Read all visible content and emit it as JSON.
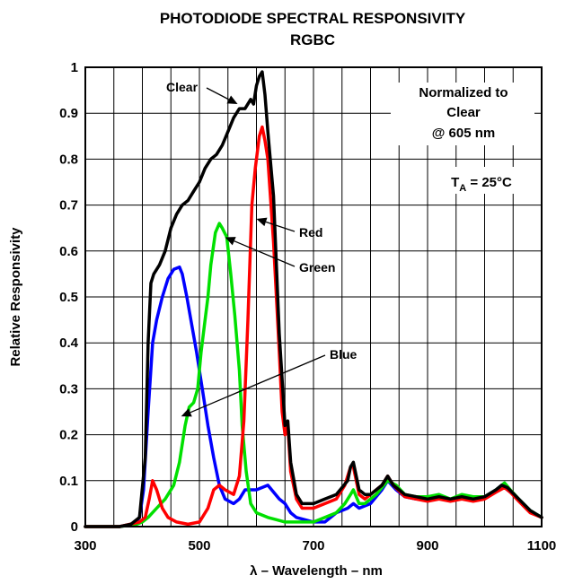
{
  "chart_data": {
    "type": "line",
    "title": "PHOTODIODE SPECTRAL RESPONSIVITY",
    "subtitle": "RGBC",
    "xlabel": "λ – Wavelength – nm",
    "ylabel": "Relative Responsivity",
    "xlim": [
      300,
      1100
    ],
    "ylim": [
      0,
      1
    ],
    "x_ticks": [
      300,
      500,
      700,
      900,
      1100
    ],
    "y_ticks": [
      0,
      0.1,
      0.2,
      0.3,
      0.4,
      0.5,
      0.6,
      0.7,
      0.8,
      0.9,
      1
    ],
    "y_tick_labels": [
      "0",
      "0.1",
      "0.2",
      "0.3",
      "0.4",
      "0.5",
      "0.6",
      "0.7",
      "0.8",
      "0.9",
      "1"
    ],
    "grid": true,
    "notes": {
      "normalized_line1": "Normalized to",
      "normalized_line2": "Clear",
      "normalized_line3": "@ 605 nm",
      "temp_prefix": "T",
      "temp_sub": "A",
      "temp_suffix": " = 25°C"
    },
    "annotations": [
      {
        "label": "Clear",
        "series": "Clear",
        "point": [
          567,
          0.92
        ]
      },
      {
        "label": "Red",
        "series": "Red",
        "point": [
          600,
          0.67
        ]
      },
      {
        "label": "Green",
        "series": "Green",
        "point": [
          545,
          0.63
        ]
      },
      {
        "label": "Blue",
        "series": "Blue",
        "point": [
          468,
          0.24
        ]
      }
    ],
    "series": [
      {
        "name": "Clear",
        "color": "#000000",
        "points": [
          [
            300,
            0
          ],
          [
            360,
            0
          ],
          [
            380,
            0.005
          ],
          [
            395,
            0.02
          ],
          [
            405,
            0.15
          ],
          [
            410,
            0.4
          ],
          [
            415,
            0.53
          ],
          [
            420,
            0.55
          ],
          [
            430,
            0.57
          ],
          [
            440,
            0.6
          ],
          [
            450,
            0.65
          ],
          [
            460,
            0.68
          ],
          [
            470,
            0.7
          ],
          [
            480,
            0.71
          ],
          [
            490,
            0.73
          ],
          [
            500,
            0.75
          ],
          [
            510,
            0.78
          ],
          [
            520,
            0.8
          ],
          [
            530,
            0.81
          ],
          [
            540,
            0.83
          ],
          [
            550,
            0.86
          ],
          [
            560,
            0.89
          ],
          [
            570,
            0.91
          ],
          [
            580,
            0.91
          ],
          [
            590,
            0.93
          ],
          [
            595,
            0.92
          ],
          [
            600,
            0.96
          ],
          [
            605,
            0.98
          ],
          [
            610,
            0.99
          ],
          [
            615,
            0.94
          ],
          [
            620,
            0.86
          ],
          [
            630,
            0.72
          ],
          [
            640,
            0.42
          ],
          [
            650,
            0.22
          ],
          [
            655,
            0.23
          ],
          [
            660,
            0.14
          ],
          [
            670,
            0.07
          ],
          [
            680,
            0.05
          ],
          [
            700,
            0.05
          ],
          [
            720,
            0.06
          ],
          [
            740,
            0.07
          ],
          [
            760,
            0.1
          ],
          [
            765,
            0.13
          ],
          [
            770,
            0.14
          ],
          [
            780,
            0.08
          ],
          [
            790,
            0.07
          ],
          [
            800,
            0.07
          ],
          [
            820,
            0.09
          ],
          [
            830,
            0.11
          ],
          [
            840,
            0.09
          ],
          [
            860,
            0.07
          ],
          [
            880,
            0.065
          ],
          [
            900,
            0.06
          ],
          [
            920,
            0.065
          ],
          [
            940,
            0.06
          ],
          [
            960,
            0.065
          ],
          [
            980,
            0.06
          ],
          [
            1000,
            0.065
          ],
          [
            1020,
            0.08
          ],
          [
            1030,
            0.09
          ],
          [
            1040,
            0.085
          ],
          [
            1060,
            0.06
          ],
          [
            1080,
            0.035
          ],
          [
            1100,
            0.02
          ]
        ]
      },
      {
        "name": "Red",
        "color": "#ff0000",
        "points": [
          [
            300,
            0
          ],
          [
            360,
            0
          ],
          [
            395,
            0.01
          ],
          [
            405,
            0.02
          ],
          [
            412,
            0.06
          ],
          [
            418,
            0.1
          ],
          [
            425,
            0.08
          ],
          [
            435,
            0.04
          ],
          [
            445,
            0.02
          ],
          [
            460,
            0.01
          ],
          [
            480,
            0.005
          ],
          [
            500,
            0.01
          ],
          [
            515,
            0.04
          ],
          [
            525,
            0.08
          ],
          [
            535,
            0.09
          ],
          [
            545,
            0.08
          ],
          [
            560,
            0.07
          ],
          [
            570,
            0.11
          ],
          [
            578,
            0.23
          ],
          [
            585,
            0.45
          ],
          [
            592,
            0.7
          ],
          [
            598,
            0.78
          ],
          [
            605,
            0.85
          ],
          [
            610,
            0.87
          ],
          [
            615,
            0.84
          ],
          [
            620,
            0.8
          ],
          [
            630,
            0.62
          ],
          [
            640,
            0.38
          ],
          [
            645,
            0.25
          ],
          [
            650,
            0.2
          ],
          [
            655,
            0.22
          ],
          [
            660,
            0.12
          ],
          [
            670,
            0.06
          ],
          [
            680,
            0.04
          ],
          [
            700,
            0.04
          ],
          [
            720,
            0.05
          ],
          [
            740,
            0.06
          ],
          [
            755,
            0.09
          ],
          [
            765,
            0.13
          ],
          [
            770,
            0.13
          ],
          [
            780,
            0.07
          ],
          [
            790,
            0.06
          ],
          [
            800,
            0.07
          ],
          [
            820,
            0.09
          ],
          [
            830,
            0.11
          ],
          [
            840,
            0.09
          ],
          [
            860,
            0.065
          ],
          [
            880,
            0.06
          ],
          [
            900,
            0.055
          ],
          [
            920,
            0.06
          ],
          [
            940,
            0.055
          ],
          [
            960,
            0.06
          ],
          [
            980,
            0.055
          ],
          [
            1000,
            0.06
          ],
          [
            1020,
            0.075
          ],
          [
            1035,
            0.085
          ],
          [
            1045,
            0.075
          ],
          [
            1060,
            0.055
          ],
          [
            1080,
            0.03
          ],
          [
            1100,
            0.02
          ]
        ]
      },
      {
        "name": "Green",
        "color": "#00e000",
        "points": [
          [
            300,
            0
          ],
          [
            360,
            0
          ],
          [
            390,
            0.005
          ],
          [
            400,
            0.01
          ],
          [
            410,
            0.02
          ],
          [
            425,
            0.04
          ],
          [
            440,
            0.06
          ],
          [
            455,
            0.09
          ],
          [
            465,
            0.14
          ],
          [
            475,
            0.22
          ],
          [
            482,
            0.26
          ],
          [
            490,
            0.27
          ],
          [
            497,
            0.3
          ],
          [
            503,
            0.38
          ],
          [
            510,
            0.45
          ],
          [
            515,
            0.5
          ],
          [
            520,
            0.57
          ],
          [
            528,
            0.64
          ],
          [
            535,
            0.66
          ],
          [
            540,
            0.65
          ],
          [
            548,
            0.63
          ],
          [
            555,
            0.55
          ],
          [
            562,
            0.46
          ],
          [
            570,
            0.34
          ],
          [
            575,
            0.22
          ],
          [
            582,
            0.12
          ],
          [
            590,
            0.05
          ],
          [
            600,
            0.03
          ],
          [
            620,
            0.02
          ],
          [
            635,
            0.015
          ],
          [
            650,
            0.01
          ],
          [
            700,
            0.01
          ],
          [
            720,
            0.02
          ],
          [
            740,
            0.03
          ],
          [
            755,
            0.05
          ],
          [
            765,
            0.07
          ],
          [
            770,
            0.08
          ],
          [
            780,
            0.05
          ],
          [
            790,
            0.05
          ],
          [
            810,
            0.07
          ],
          [
            830,
            0.1
          ],
          [
            845,
            0.09
          ],
          [
            860,
            0.07
          ],
          [
            880,
            0.065
          ],
          [
            900,
            0.065
          ],
          [
            920,
            0.07
          ],
          [
            940,
            0.06
          ],
          [
            960,
            0.07
          ],
          [
            980,
            0.065
          ],
          [
            1000,
            0.065
          ],
          [
            1020,
            0.08
          ],
          [
            1035,
            0.095
          ],
          [
            1045,
            0.08
          ],
          [
            1060,
            0.06
          ],
          [
            1080,
            0.035
          ],
          [
            1100,
            0.02
          ]
        ]
      },
      {
        "name": "Blue",
        "color": "#0000ff",
        "points": [
          [
            300,
            0
          ],
          [
            360,
            0
          ],
          [
            385,
            0.005
          ],
          [
            395,
            0.02
          ],
          [
            402,
            0.08
          ],
          [
            410,
            0.25
          ],
          [
            418,
            0.4
          ],
          [
            425,
            0.45
          ],
          [
            435,
            0.5
          ],
          [
            445,
            0.54
          ],
          [
            455,
            0.56
          ],
          [
            465,
            0.565
          ],
          [
            470,
            0.55
          ],
          [
            478,
            0.5
          ],
          [
            485,
            0.45
          ],
          [
            495,
            0.38
          ],
          [
            505,
            0.3
          ],
          [
            515,
            0.22
          ],
          [
            525,
            0.15
          ],
          [
            535,
            0.09
          ],
          [
            545,
            0.06
          ],
          [
            560,
            0.05
          ],
          [
            570,
            0.06
          ],
          [
            580,
            0.08
          ],
          [
            600,
            0.08
          ],
          [
            620,
            0.09
          ],
          [
            640,
            0.06
          ],
          [
            650,
            0.05
          ],
          [
            660,
            0.03
          ],
          [
            670,
            0.02
          ],
          [
            700,
            0.01
          ],
          [
            720,
            0.01
          ],
          [
            740,
            0.03
          ],
          [
            760,
            0.04
          ],
          [
            770,
            0.05
          ],
          [
            780,
            0.04
          ],
          [
            800,
            0.05
          ],
          [
            820,
            0.08
          ],
          [
            830,
            0.1
          ],
          [
            845,
            0.08
          ],
          [
            860,
            0.065
          ],
          [
            880,
            0.06
          ],
          [
            900,
            0.06
          ],
          [
            920,
            0.065
          ],
          [
            940,
            0.06
          ],
          [
            960,
            0.065
          ],
          [
            980,
            0.06
          ],
          [
            1000,
            0.065
          ],
          [
            1020,
            0.08
          ],
          [
            1030,
            0.09
          ],
          [
            1040,
            0.08
          ],
          [
            1060,
            0.06
          ],
          [
            1080,
            0.035
          ],
          [
            1100,
            0.02
          ]
        ]
      }
    ]
  }
}
